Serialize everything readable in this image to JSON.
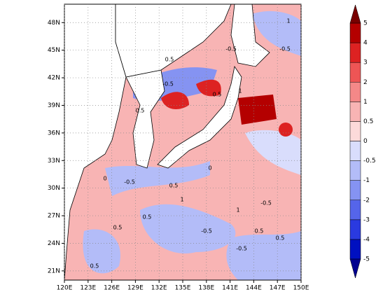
{
  "map": {
    "xticks": [
      {
        "value": 120,
        "label": "120E"
      },
      {
        "value": 123,
        "label": "123E"
      },
      {
        "value": 126,
        "label": "126E"
      },
      {
        "value": 129,
        "label": "129E"
      },
      {
        "value": 132,
        "label": "132E"
      },
      {
        "value": 135,
        "label": "135E"
      },
      {
        "value": 138,
        "label": "138E"
      },
      {
        "value": 141,
        "label": "141E"
      },
      {
        "value": 144,
        "label": "144E"
      },
      {
        "value": 147,
        "label": "147E"
      },
      {
        "value": 150,
        "label": "150E"
      }
    ],
    "yticks": [
      {
        "value": 21,
        "label": "21N"
      },
      {
        "value": 24,
        "label": "24N"
      },
      {
        "value": 27,
        "label": "27N"
      },
      {
        "value": 30,
        "label": "30N"
      },
      {
        "value": 33,
        "label": "33N"
      },
      {
        "value": 36,
        "label": "36N"
      },
      {
        "value": 39,
        "label": "39N"
      },
      {
        "value": 42,
        "label": "42N"
      },
      {
        "value": 45,
        "label": "45N"
      },
      {
        "value": 48,
        "label": "48N"
      }
    ],
    "xlim": [
      120,
      150
    ],
    "ylim": [
      20,
      50
    ],
    "contour_labels": [
      "0.5",
      "-0.5",
      "1",
      "0.5",
      "-0.5",
      "0.5",
      "0",
      "-0.5",
      "0.5",
      "1",
      "0.5",
      "0",
      "-0.5",
      "0.5",
      "0.5",
      "-0.5",
      "1",
      "0.5",
      "-0.5",
      "0.5",
      "1",
      "-0.5"
    ],
    "colorbar": {
      "levels": [
        -5,
        -4,
        -3,
        -2,
        -1,
        -0.5,
        0,
        0.5,
        1,
        2,
        3,
        4,
        5
      ],
      "colors": [
        "#0010c0",
        "#2a3ae0",
        "#5565ea",
        "#8593f2",
        "#b3bcf8",
        "#d9ddfc",
        "#fcdada",
        "#f8b4b4",
        "#f48888",
        "#ee5555",
        "#dd2222",
        "#b40000"
      ],
      "under_color": "#000090",
      "over_color": "#780000"
    }
  }
}
